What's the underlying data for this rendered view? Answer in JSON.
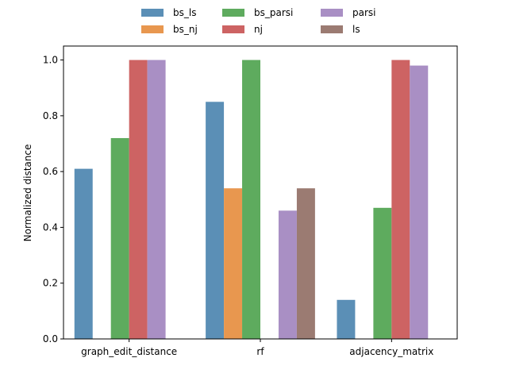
{
  "chart_data": {
    "type": "bar",
    "ylabel": "Normalized distance",
    "ylim": [
      0,
      1.05
    ],
    "yticks": [
      "0.0",
      "0.2",
      "0.4",
      "0.6",
      "0.8",
      "1.0"
    ],
    "ytick_values": [
      0,
      0.2,
      0.4,
      0.6,
      0.8,
      1.0
    ],
    "categories": [
      "graph_edit_distance",
      "rf",
      "adjacency_matrix"
    ],
    "legend_position": "top-center",
    "series": [
      {
        "name": "bs_ls",
        "color": "#5b8fb6",
        "values": [
          0.61,
          0.85,
          0.14
        ]
      },
      {
        "name": "bs_nj",
        "color": "#e8974f",
        "values": [
          0,
          0.54,
          0
        ]
      },
      {
        "name": "bs_parsi",
        "color": "#5eab5e",
        "values": [
          0.72,
          1.0,
          0.47
        ]
      },
      {
        "name": "nj",
        "color": "#cd6363",
        "values": [
          1.0,
          0,
          1.0
        ]
      },
      {
        "name": "parsi",
        "color": "#a98fc4",
        "values": [
          1.0,
          0.46,
          0.98
        ]
      },
      {
        "name": "ls",
        "color": "#9b7b72",
        "values": [
          0,
          0.54,
          0
        ]
      }
    ]
  }
}
